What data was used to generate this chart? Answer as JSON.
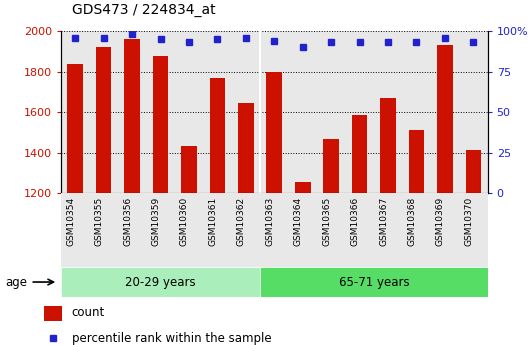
{
  "title": "GDS473 / 224834_at",
  "samples": [
    "GSM10354",
    "GSM10355",
    "GSM10356",
    "GSM10359",
    "GSM10360",
    "GSM10361",
    "GSM10362",
    "GSM10363",
    "GSM10364",
    "GSM10365",
    "GSM10366",
    "GSM10367",
    "GSM10368",
    "GSM10369",
    "GSM10370"
  ],
  "counts": [
    1835,
    1920,
    1960,
    1875,
    1435,
    1770,
    1645,
    1800,
    1255,
    1465,
    1585,
    1670,
    1510,
    1930,
    1415
  ],
  "percentiles": [
    96,
    96,
    98,
    95,
    93,
    95,
    96,
    94,
    90,
    93,
    93,
    93,
    93,
    96,
    93
  ],
  "group1_label": "20-29 years",
  "group2_label": "65-71 years",
  "group1_count": 7,
  "group2_count": 8,
  "ylim_left": [
    1200,
    2000
  ],
  "ylim_right": [
    0,
    100
  ],
  "bar_color": "#CC1100",
  "dot_color": "#2222CC",
  "group1_color": "#AAEEBB",
  "group2_color": "#55DD66",
  "tick_color_left": "#CC1100",
  "tick_color_right": "#2222CC",
  "yticks_left": [
    1200,
    1400,
    1600,
    1800,
    2000
  ],
  "yticks_right": [
    0,
    25,
    50,
    75,
    100
  ],
  "ytick_labels_right": [
    "0",
    "25",
    "50",
    "75",
    "100%"
  ],
  "legend_count_label": "count",
  "legend_pct_label": "percentile rank within the sample",
  "age_label": "age",
  "plot_bg": "#E8E8E8"
}
